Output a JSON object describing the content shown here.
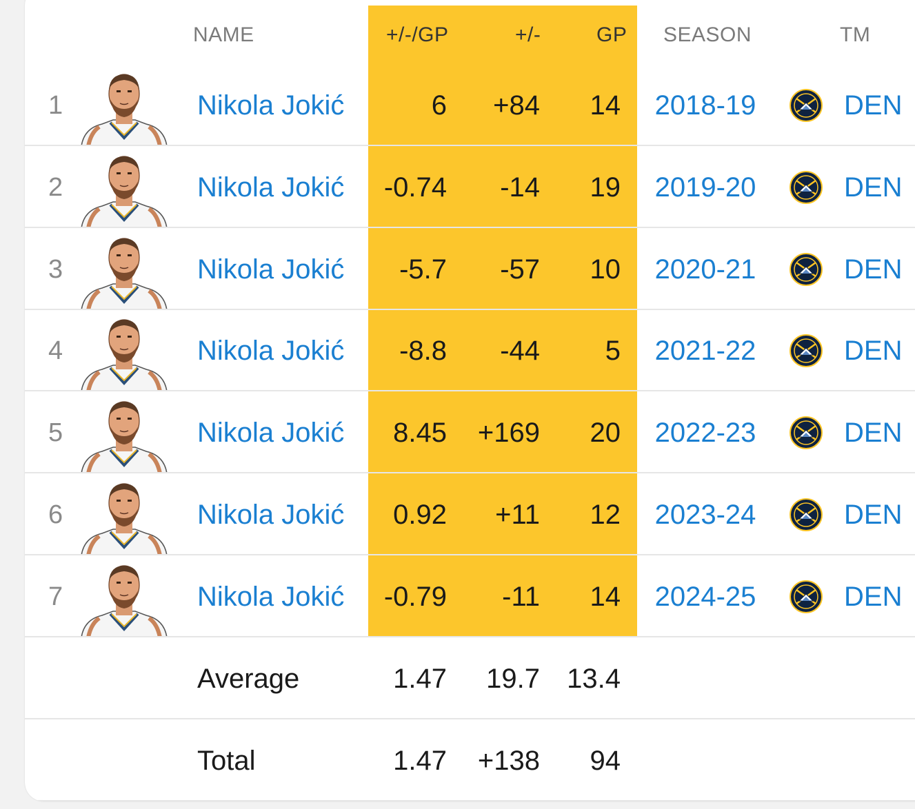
{
  "headers": {
    "name": "NAME",
    "plus_minus_per_gp": "+/-/GP",
    "plus_minus": "+/-",
    "gp": "GP",
    "season": "SEASON",
    "team": "TM"
  },
  "rows": [
    {
      "rank": "1",
      "name": "Nikola Jokić",
      "pm_gp": "6",
      "pm": "+84",
      "gp": "14",
      "season": "2018-19",
      "team": "DEN"
    },
    {
      "rank": "2",
      "name": "Nikola Jokić",
      "pm_gp": "-0.74",
      "pm": "-14",
      "gp": "19",
      "season": "2019-20",
      "team": "DEN"
    },
    {
      "rank": "3",
      "name": "Nikola Jokić",
      "pm_gp": "-5.7",
      "pm": "-57",
      "gp": "10",
      "season": "2020-21",
      "team": "DEN"
    },
    {
      "rank": "4",
      "name": "Nikola Jokić",
      "pm_gp": "-8.8",
      "pm": "-44",
      "gp": "5",
      "season": "2021-22",
      "team": "DEN"
    },
    {
      "rank": "5",
      "name": "Nikola Jokić",
      "pm_gp": "8.45",
      "pm": "+169",
      "gp": "20",
      "season": "2022-23",
      "team": "DEN"
    },
    {
      "rank": "6",
      "name": "Nikola Jokić",
      "pm_gp": "0.92",
      "pm": "+11",
      "gp": "12",
      "season": "2023-24",
      "team": "DEN"
    },
    {
      "rank": "7",
      "name": "Nikola Jokić",
      "pm_gp": "-0.79",
      "pm": "-11",
      "gp": "14",
      "season": "2024-25",
      "team": "DEN"
    }
  ],
  "footer": [
    {
      "label": "Average",
      "pm_gp": "1.47",
      "pm": "19.7",
      "gp": "13.4"
    },
    {
      "label": "Total",
      "pm_gp": "1.47",
      "pm": "+138",
      "gp": "94"
    }
  ],
  "icons": {
    "player": "player-avatar-icon",
    "team_logo": "nuggets-logo-icon"
  },
  "colors": {
    "highlight": "#fcc62c",
    "link": "#1a7fd1",
    "text": "#1a1a1a",
    "muted": "#7a7a7a"
  }
}
